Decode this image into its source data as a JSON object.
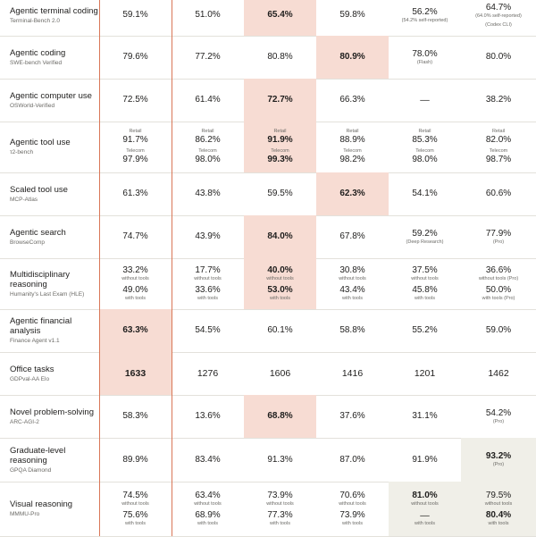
{
  "chart_data": {
    "type": "table",
    "rows": [
      {
        "title": "Agentic terminal coding",
        "subtitle": "Terminal-Bench 2.0",
        "cells": [
          {
            "lines": [
              {
                "v": "59.1%"
              }
            ]
          },
          {
            "lines": [
              {
                "v": "51.0%"
              }
            ]
          },
          {
            "hl": "o",
            "lines": [
              {
                "v": "65.4%",
                "b": true
              }
            ]
          },
          {
            "lines": [
              {
                "v": "59.8%"
              }
            ]
          },
          {
            "lines": [
              {
                "v": "56.2%",
                "note": "(54.2% self-reported)"
              }
            ]
          },
          {
            "lines": [
              {
                "v": "64.7%",
                "note": "(64.0% self-reported)"
              },
              {
                "note": "(Codex CLI)"
              }
            ]
          }
        ]
      },
      {
        "title": "Agentic coding",
        "subtitle": "SWE-bench Verified",
        "cells": [
          {
            "lines": [
              {
                "v": "79.6%"
              }
            ]
          },
          {
            "lines": [
              {
                "v": "77.2%"
              }
            ]
          },
          {
            "lines": [
              {
                "v": "80.8%"
              }
            ]
          },
          {
            "hl": "o",
            "lines": [
              {
                "v": "80.9%",
                "b": true
              }
            ]
          },
          {
            "lines": [
              {
                "v": "78.0%",
                "note": "(Flash)"
              }
            ]
          },
          {
            "lines": [
              {
                "v": "80.0%"
              }
            ]
          }
        ]
      },
      {
        "title": "Agentic computer use",
        "subtitle": "OSWorld-Verified",
        "cells": [
          {
            "lines": [
              {
                "v": "72.5%"
              }
            ]
          },
          {
            "lines": [
              {
                "v": "61.4%"
              }
            ]
          },
          {
            "hl": "o",
            "lines": [
              {
                "v": "72.7%",
                "b": true
              }
            ]
          },
          {
            "lines": [
              {
                "v": "66.3%"
              }
            ]
          },
          {
            "lines": [
              {
                "v": "—"
              }
            ]
          },
          {
            "lines": [
              {
                "v": "38.2%"
              }
            ]
          }
        ]
      },
      {
        "title": "Agentic tool use",
        "subtitle": "τ2-bench",
        "cells": [
          {
            "lines": [
              {
                "pre": "Retail",
                "v": "91.7%"
              },
              {
                "pre": "Telecom",
                "v": "97.9%"
              }
            ]
          },
          {
            "lines": [
              {
                "pre": "Retail",
                "v": "86.2%"
              },
              {
                "pre": "Telecom",
                "v": "98.0%"
              }
            ]
          },
          {
            "hl": "o",
            "lines": [
              {
                "pre": "Retail",
                "v": "91.9%",
                "b": true
              },
              {
                "pre": "Telecom",
                "v": "99.3%",
                "b": true
              }
            ]
          },
          {
            "lines": [
              {
                "pre": "Retail",
                "v": "88.9%"
              },
              {
                "pre": "Telecom",
                "v": "98.2%"
              }
            ]
          },
          {
            "lines": [
              {
                "pre": "Retail",
                "v": "85.3%"
              },
              {
                "pre": "Telecom",
                "v": "98.0%"
              }
            ]
          },
          {
            "lines": [
              {
                "pre": "Retail",
                "v": "82.0%"
              },
              {
                "pre": "Telecom",
                "v": "98.7%"
              }
            ]
          }
        ]
      },
      {
        "title": "Scaled tool use",
        "subtitle": "MCP-Atlas",
        "cells": [
          {
            "lines": [
              {
                "v": "61.3%"
              }
            ]
          },
          {
            "lines": [
              {
                "v": "43.8%"
              }
            ]
          },
          {
            "lines": [
              {
                "v": "59.5%"
              }
            ]
          },
          {
            "hl": "o",
            "lines": [
              {
                "v": "62.3%",
                "b": true
              }
            ]
          },
          {
            "lines": [
              {
                "v": "54.1%"
              }
            ]
          },
          {
            "lines": [
              {
                "v": "60.6%"
              }
            ]
          }
        ]
      },
      {
        "title": "Agentic search",
        "subtitle": "BrowseComp",
        "cells": [
          {
            "lines": [
              {
                "v": "74.7%"
              }
            ]
          },
          {
            "lines": [
              {
                "v": "43.9%"
              }
            ]
          },
          {
            "hl": "o",
            "lines": [
              {
                "v": "84.0%",
                "b": true
              }
            ]
          },
          {
            "lines": [
              {
                "v": "67.8%"
              }
            ]
          },
          {
            "lines": [
              {
                "v": "59.2%",
                "note": "(Deep Research)"
              }
            ]
          },
          {
            "lines": [
              {
                "v": "77.9%",
                "note": "(Pro)"
              }
            ]
          }
        ]
      },
      {
        "title": "Multidisciplinary reasoning",
        "subtitle": "Humanity's Last Exam (HLE)",
        "cells": [
          {
            "lines": [
              {
                "v": "33.2%",
                "note": "without tools"
              },
              {
                "v": "49.0%",
                "note": "with tools"
              }
            ]
          },
          {
            "lines": [
              {
                "v": "17.7%",
                "note": "without tools"
              },
              {
                "v": "33.6%",
                "note": "with tools"
              }
            ]
          },
          {
            "hl": "o",
            "lines": [
              {
                "v": "40.0%",
                "b": true,
                "note": "without tools"
              },
              {
                "v": "53.0%",
                "b": true,
                "note": "with tools"
              }
            ]
          },
          {
            "lines": [
              {
                "v": "30.8%",
                "note": "without tools"
              },
              {
                "v": "43.4%",
                "note": "with tools"
              }
            ]
          },
          {
            "lines": [
              {
                "v": "37.5%",
                "note": "without tools"
              },
              {
                "v": "45.8%",
                "note": "with tools"
              }
            ]
          },
          {
            "lines": [
              {
                "v": "36.6%",
                "note": "without tools (Pro)"
              },
              {
                "v": "50.0%",
                "note": "with tools (Pro)"
              }
            ]
          }
        ]
      },
      {
        "title": "Agentic financial analysis",
        "subtitle": "Finance Agent v1.1",
        "cells": [
          {
            "hl": "o",
            "lines": [
              {
                "v": "63.3%",
                "b": true
              }
            ]
          },
          {
            "lines": [
              {
                "v": "54.5%"
              }
            ]
          },
          {
            "lines": [
              {
                "v": "60.1%"
              }
            ]
          },
          {
            "lines": [
              {
                "v": "58.8%"
              }
            ]
          },
          {
            "lines": [
              {
                "v": "55.2%"
              }
            ]
          },
          {
            "lines": [
              {
                "v": "59.0%"
              }
            ]
          }
        ]
      },
      {
        "title": "Office tasks",
        "subtitle": "GDPval-AA Elo",
        "cells": [
          {
            "hl": "o",
            "lines": [
              {
                "v": "1633",
                "b": true
              }
            ]
          },
          {
            "lines": [
              {
                "v": "1276"
              }
            ]
          },
          {
            "lines": [
              {
                "v": "1606"
              }
            ]
          },
          {
            "lines": [
              {
                "v": "1416"
              }
            ]
          },
          {
            "lines": [
              {
                "v": "1201"
              }
            ]
          },
          {
            "lines": [
              {
                "v": "1462"
              }
            ]
          }
        ]
      },
      {
        "title": "Novel problem-solving",
        "subtitle": "ARC-AGI-2",
        "cells": [
          {
            "lines": [
              {
                "v": "58.3%"
              }
            ]
          },
          {
            "lines": [
              {
                "v": "13.6%"
              }
            ]
          },
          {
            "hl": "o",
            "lines": [
              {
                "v": "68.8%",
                "b": true
              }
            ]
          },
          {
            "lines": [
              {
                "v": "37.6%"
              }
            ]
          },
          {
            "lines": [
              {
                "v": "31.1%"
              }
            ]
          },
          {
            "lines": [
              {
                "v": "54.2%",
                "note": "(Pro)"
              }
            ]
          }
        ]
      },
      {
        "title": "Graduate-level reasoning",
        "subtitle": "GPQA Diamond",
        "cells": [
          {
            "lines": [
              {
                "v": "89.9%"
              }
            ]
          },
          {
            "lines": [
              {
                "v": "83.4%"
              }
            ]
          },
          {
            "lines": [
              {
                "v": "91.3%"
              }
            ]
          },
          {
            "lines": [
              {
                "v": "87.0%"
              }
            ]
          },
          {
            "lines": [
              {
                "v": "91.9%"
              }
            ]
          },
          {
            "hl": "g",
            "lines": [
              {
                "v": "93.2%",
                "b": true,
                "note": "(Pro)"
              }
            ]
          }
        ]
      },
      {
        "title": "Visual reasoning",
        "subtitle": "MMMU-Pro",
        "cells": [
          {
            "lines": [
              {
                "v": "74.5%",
                "note": "without tools"
              },
              {
                "v": "75.6%",
                "note": "with tools"
              }
            ]
          },
          {
            "lines": [
              {
                "v": "63.4%",
                "note": "without tools"
              },
              {
                "v": "68.9%",
                "note": "with tools"
              }
            ]
          },
          {
            "lines": [
              {
                "v": "73.9%",
                "note": "without tools"
              },
              {
                "v": "77.3%",
                "note": "with tools"
              }
            ]
          },
          {
            "lines": [
              {
                "v": "70.6%",
                "note": "without tools"
              },
              {
                "v": "73.9%",
                "note": "with tools"
              }
            ]
          },
          {
            "hl": "g",
            "lines": [
              {
                "v": "81.0%",
                "b": true,
                "note": "without tools"
              },
              {
                "v": "—",
                "note": "with tools"
              }
            ]
          },
          {
            "hl": "g",
            "lines": [
              {
                "v": "79.5%",
                "note": "without tools"
              },
              {
                "v": "80.4%",
                "b": true,
                "note": "with tools"
              }
            ]
          }
        ]
      }
    ]
  },
  "colors": {
    "highlight": "#f7dcd3",
    "highlight_alt": "#f0efe8",
    "accent_line": "#d97757"
  }
}
